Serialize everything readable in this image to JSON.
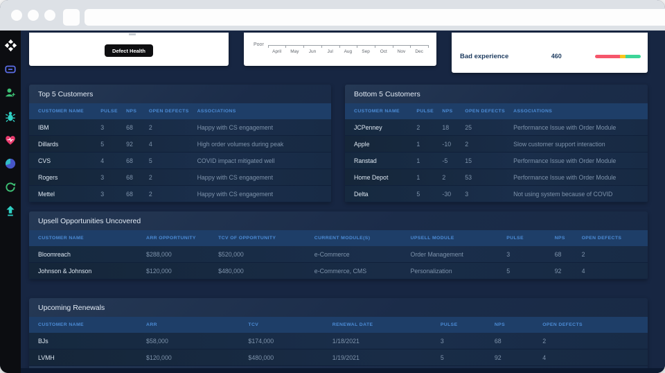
{
  "browser": {
    "window_controls": [
      "dot",
      "dot",
      "dot"
    ]
  },
  "sidebar": {
    "icons": [
      {
        "name": "logo-icon",
        "color": "#ffffff"
      },
      {
        "name": "dashboard-icon",
        "color": "#5b6ee8"
      },
      {
        "name": "customers-icon",
        "color": "#3dbf74"
      },
      {
        "name": "defects-bug-icon",
        "color": "#2fd0c4"
      },
      {
        "name": "health-heart-icon",
        "color": "#e93a6d"
      },
      {
        "name": "analytics-pie-icon",
        "color": "#4656c8"
      },
      {
        "name": "renewals-refresh-icon",
        "color": "#3dbf74"
      },
      {
        "name": "upsell-arrow-icon",
        "color": "#2fd0c4"
      }
    ]
  },
  "cards": {
    "defect_health": {
      "label": "Defect Health"
    },
    "trend": {
      "label": "Poor",
      "months": [
        "April",
        "May",
        "Jun",
        "Jul",
        "Aug",
        "Sep",
        "Oct",
        "Nov",
        "Dec"
      ]
    },
    "experience": {
      "label": "Bad experience",
      "value": "460",
      "bar_segments": [
        {
          "color": "#f5566b",
          "width": 55
        },
        {
          "color": "#f8c51c",
          "width": 12
        },
        {
          "color": "#3ed598",
          "width": 33
        }
      ]
    }
  },
  "tables": {
    "top5": {
      "title": "Top 5 Customers",
      "columns": [
        "CUSTOMER NAME",
        "PULSE",
        "NPS",
        "OPEN DEFECTS",
        "ASSOCIATIONS"
      ],
      "rows": [
        [
          "IBM",
          "3",
          "68",
          "2",
          "Happy with CS engagement"
        ],
        [
          "Dillards",
          "5",
          "92",
          "4",
          "High order volumes during peak"
        ],
        [
          "CVS",
          "4",
          "68",
          "5",
          "COVID impact mitigated well"
        ],
        [
          "Rogers",
          "3",
          "68",
          "2",
          "Happy with CS engagement"
        ],
        [
          "Mettel",
          "3",
          "68",
          "2",
          "Happy with CS engagement"
        ]
      ]
    },
    "bottom5": {
      "title": "Bottom 5 Customers",
      "columns": [
        "CUSTOMER NAME",
        "PULSE",
        "NPS",
        "OPEN DEFECTS",
        "ASSOCIATIONS"
      ],
      "rows": [
        [
          "JCPenney",
          "2",
          "18",
          "25",
          "Performance Issue with Order Module"
        ],
        [
          "Apple",
          "1",
          "-10",
          "2",
          "Slow customer support interaction"
        ],
        [
          "Ranstad",
          "1",
          "-5",
          "15",
          "Performance Issue with Order Module"
        ],
        [
          "Home Depot",
          "1",
          "2",
          "53",
          "Performance Issue with Order Module"
        ],
        [
          "Delta",
          "5",
          "-30",
          "3",
          "Not using system because of COVID"
        ]
      ]
    },
    "upsell": {
      "title": "Upsell Opportunities Uncovered",
      "columns": [
        "CUSTOMER NAME",
        "ARR OPPORTUNITY",
        "TCV OF OPPORTUNITY",
        "CURRENT MODULE(S)",
        "UPSELL MODULE",
        "PULSE",
        "NPS",
        "OPEN DEFECTS"
      ],
      "rows": [
        [
          "Bloomreach",
          "$288,000",
          "$520,000",
          "e-Commerce",
          "Order Management",
          "3",
          "68",
          "2"
        ],
        [
          "Johnson & Johnson",
          "$120,000",
          "$480,000",
          "e-Commerce, CMS",
          "Personalization",
          "5",
          "92",
          "4"
        ]
      ]
    },
    "renewals": {
      "title": "Upcoming Renewals",
      "columns": [
        "CUSTOMER NAME",
        "ARR",
        "TCV",
        "RENEWAL DATE",
        "PULSE",
        "NPS",
        "OPEN DEFECTS"
      ],
      "rows": [
        [
          "BJs",
          "$58,000",
          "$174,000",
          "1/18/2021",
          "3",
          "68",
          "2"
        ],
        [
          "LVMH",
          "$120,000",
          "$480,000",
          "1/19/2021",
          "5",
          "92",
          "4"
        ]
      ]
    }
  }
}
